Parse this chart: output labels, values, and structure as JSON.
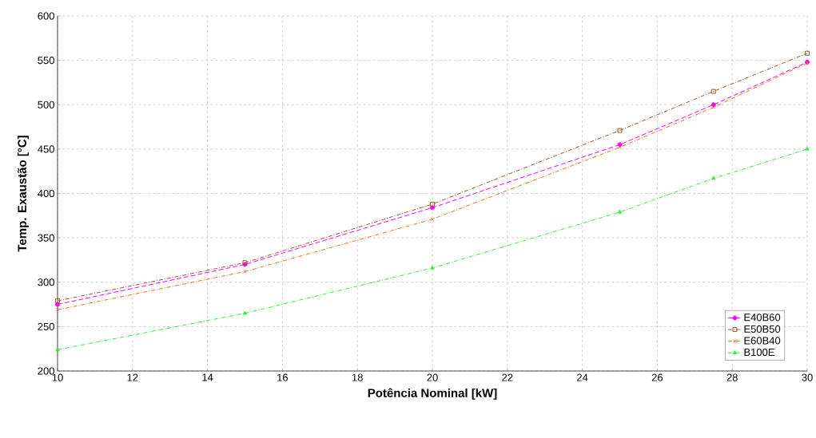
{
  "chart_data": {
    "type": "line",
    "xlabel": "Potência Nominal [kW]",
    "ylabel": "Temp. Exaustão [°C]",
    "x": [
      10,
      15,
      20,
      25,
      27.5,
      30
    ],
    "series": [
      {
        "name": "E40B60",
        "color": "#ff00ff",
        "marker": "circle",
        "line_style": "dashed",
        "values": [
          275,
          320,
          384,
          455,
          500,
          548
        ]
      },
      {
        "name": "E50B50",
        "color": "#a0522d",
        "marker": "square",
        "line_style": "dashdot",
        "values": [
          279,
          322,
          388,
          471,
          515,
          558
        ]
      },
      {
        "name": "E60B40",
        "color": "#ff6a1a",
        "marker": "cross",
        "line_style": "dashdot",
        "values": [
          269,
          312,
          371,
          452,
          497,
          547
        ]
      },
      {
        "name": "B100E",
        "color": "#33ee33",
        "marker": "triangle",
        "line_style": "dashdot",
        "values": [
          224,
          265,
          316,
          379,
          417,
          450
        ]
      }
    ],
    "xlim": [
      10,
      30
    ],
    "ylim": [
      200,
      600
    ],
    "xticks": [
      10,
      12,
      14,
      16,
      18,
      20,
      22,
      24,
      26,
      28,
      30
    ],
    "yticks": [
      200,
      250,
      300,
      350,
      400,
      450,
      500,
      550,
      600
    ],
    "grid": true,
    "legend": "bottom right"
  }
}
